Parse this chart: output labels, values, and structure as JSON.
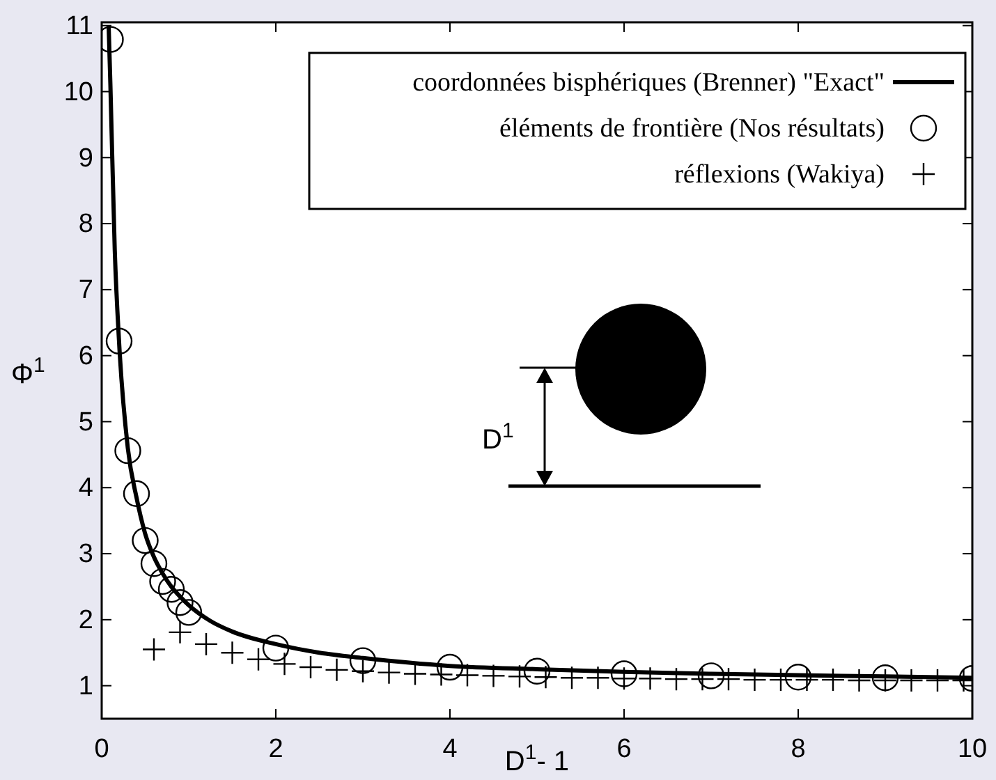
{
  "chart_data": {
    "type": "scatter",
    "xlabel": "D$^{1}$- 1",
    "ylabel": "Φ$^{1}$",
    "xlim": [
      0,
      10
    ],
    "ylim": [
      0.5,
      11.05
    ],
    "xticks": [
      0,
      2,
      4,
      6,
      8,
      10
    ],
    "yticks": [
      1,
      2,
      3,
      4,
      5,
      6,
      7,
      8,
      9,
      10,
      11
    ],
    "grid": false,
    "legend": "top right",
    "annotations": [
      "D$^{1}$"
    ],
    "series": [
      {
        "name": "coordonnées bisphériques (Brenner)  \"Exact\"",
        "type": "line",
        "color": "#000000",
        "line_style": "solid",
        "x": [
          0.08,
          0.1,
          0.15,
          0.2,
          0.3,
          0.4,
          0.5,
          0.6,
          0.7,
          0.8,
          0.9,
          1,
          1.25,
          1.5,
          2,
          2.5,
          3,
          4,
          5,
          6,
          7,
          8,
          9,
          10
        ],
        "values": [
          11,
          10.1,
          7.6,
          6.2,
          4.6,
          3.85,
          3.3,
          2.95,
          2.7,
          2.5,
          2.35,
          2.22,
          1.98,
          1.82,
          1.63,
          1.5,
          1.42,
          1.3,
          1.25,
          1.21,
          1.18,
          1.16,
          1.14,
          1.12
        ]
      },
      {
        "name": "éléments de frontière (Nos résultats)",
        "marker": "circle",
        "color": "#000000",
        "x": [
          0.1,
          0.2,
          0.3,
          0.4,
          0.5,
          0.6,
          0.7,
          0.8,
          0.9,
          1,
          2,
          3,
          4,
          5,
          6,
          7,
          8,
          9,
          10
        ],
        "values": [
          10.79,
          6.22,
          4.56,
          3.91,
          3.2,
          2.85,
          2.58,
          2.46,
          2.26,
          2.11,
          1.57,
          1.38,
          1.28,
          1.22,
          1.18,
          1.15,
          1.13,
          1.12,
          1.11
        ]
      },
      {
        "name": "réflexions (Wakiya)",
        "marker": "cross",
        "color": "#000000",
        "x": [
          0.6,
          0.9,
          1.2,
          1.5,
          1.8,
          2.1,
          2.4,
          2.7,
          3,
          3.3,
          3.6,
          3.9,
          4.2,
          4.5,
          4.8,
          5.1,
          5.4,
          5.7,
          6,
          6.3,
          6.6,
          6.9,
          7.2,
          7.5,
          7.8,
          8.1,
          8.4,
          8.7,
          9,
          9.3,
          9.6,
          9.9
        ],
        "values": [
          1.55,
          1.81,
          1.63,
          1.5,
          1.4,
          1.33,
          1.28,
          1.24,
          1.22,
          1.2,
          1.18,
          1.17,
          1.16,
          1.15,
          1.14,
          1.13,
          1.12,
          1.12,
          1.11,
          1.11,
          1.1,
          1.1,
          1.1,
          1.09,
          1.09,
          1.09,
          1.09,
          1.08,
          1.08,
          1.08,
          1.08,
          1.08
        ]
      }
    ]
  }
}
